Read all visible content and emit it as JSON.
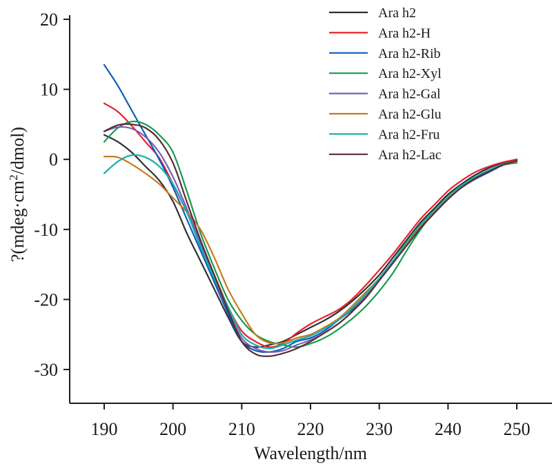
{
  "chart_data": {
    "type": "line",
    "title": "",
    "xlabel": "Wavelength/nm",
    "ylabel": "?(mdeg·cm²/dmol)",
    "ylabel_parts": {
      "main": "?(mdeg·cm",
      "sup": "2",
      "tail": "/dmol)"
    },
    "xlim": [
      185,
      255
    ],
    "ylim": [
      -35,
      20
    ],
    "xticks": [
      190,
      200,
      210,
      220,
      230,
      240,
      250
    ],
    "yticks": [
      20,
      10,
      0,
      -10,
      -20,
      -30
    ],
    "grid": false,
    "legend_position": "top-right",
    "x": [
      190,
      192,
      194,
      196,
      198,
      200,
      202,
      204,
      206,
      208,
      210,
      212,
      214,
      216,
      218,
      220,
      222,
      224,
      226,
      228,
      230,
      232,
      234,
      236,
      238,
      240,
      242,
      244,
      246,
      248,
      250
    ],
    "series": [
      {
        "name": "Ara h2",
        "color": "#2b2f33",
        "values": [
          3.5,
          2.5,
          1.0,
          -1.0,
          -3.0,
          -6.0,
          -10.5,
          -14.5,
          -18.5,
          -22.5,
          -26.0,
          -26.8,
          -26.5,
          -26.0,
          -25.0,
          -24.0,
          -23.0,
          -21.8,
          -20.3,
          -18.5,
          -16.5,
          -14.0,
          -11.5,
          -9.0,
          -7.0,
          -5.0,
          -3.5,
          -2.2,
          -1.2,
          -0.5,
          0.0
        ]
      },
      {
        "name": "Ara h2-H",
        "color": "#e8202c",
        "values": [
          8.0,
          6.8,
          4.8,
          2.5,
          0.2,
          -3.5,
          -7.5,
          -12.0,
          -16.5,
          -21.0,
          -24.5,
          -26.0,
          -26.8,
          -26.3,
          -24.8,
          -23.5,
          -22.5,
          -21.5,
          -20.0,
          -18.0,
          -15.8,
          -13.5,
          -11.0,
          -8.5,
          -6.5,
          -4.5,
          -3.0,
          -1.8,
          -1.0,
          -0.4,
          0.0
        ]
      },
      {
        "name": "Ara h2-Rib",
        "color": "#0a5fb4",
        "values": [
          13.5,
          10.5,
          7.0,
          3.5,
          0.0,
          -4.0,
          -8.5,
          -13.0,
          -17.5,
          -22.0,
          -26.0,
          -27.3,
          -27.5,
          -27.0,
          -26.0,
          -25.5,
          -24.5,
          -23.0,
          -21.5,
          -19.5,
          -17.0,
          -14.5,
          -12.0,
          -9.5,
          -7.5,
          -5.5,
          -4.0,
          -2.8,
          -1.8,
          -0.8,
          -0.2
        ]
      },
      {
        "name": "Ara h2-Xyl",
        "color": "#129c4c",
        "values": [
          2.5,
          4.5,
          5.4,
          5.0,
          3.5,
          1.0,
          -4.5,
          -10.5,
          -15.5,
          -20.0,
          -23.0,
          -25.0,
          -26.0,
          -26.5,
          -26.8,
          -26.3,
          -25.5,
          -24.3,
          -22.8,
          -21.0,
          -18.8,
          -16.2,
          -13.0,
          -10.0,
          -7.5,
          -5.5,
          -3.8,
          -2.5,
          -1.5,
          -0.8,
          -0.5
        ]
      },
      {
        "name": "Ara h2-Gal",
        "color": "#7a5cb8",
        "values": [
          4.0,
          4.6,
          4.4,
          3.2,
          1.0,
          -2.5,
          -7.0,
          -12.0,
          -17.0,
          -21.5,
          -25.5,
          -27.0,
          -27.5,
          -27.3,
          -26.5,
          -25.8,
          -24.8,
          -23.5,
          -21.8,
          -19.5,
          -17.0,
          -14.5,
          -12.0,
          -9.5,
          -7.5,
          -5.5,
          -3.8,
          -2.6,
          -1.6,
          -0.8,
          -0.3
        ]
      },
      {
        "name": "Ara h2-Glu",
        "color": "#c8791c",
        "values": [
          0.4,
          0.3,
          -0.7,
          -2.0,
          -3.5,
          -5.5,
          -7.5,
          -10.0,
          -14.0,
          -18.5,
          -22.0,
          -25.0,
          -26.2,
          -26.2,
          -25.5,
          -25.0,
          -24.0,
          -22.8,
          -21.0,
          -19.0,
          -17.0,
          -14.5,
          -12.0,
          -9.5,
          -7.5,
          -5.5,
          -4.0,
          -2.7,
          -1.6,
          -0.8,
          -0.3
        ]
      },
      {
        "name": "Ara h2-Fru",
        "color": "#17b0b0",
        "values": [
          -2.0,
          -0.3,
          0.6,
          0.3,
          -1.0,
          -3.5,
          -7.5,
          -12.5,
          -17.0,
          -21.0,
          -25.0,
          -26.5,
          -27.0,
          -26.5,
          -25.8,
          -25.2,
          -24.2,
          -23.0,
          -21.3,
          -19.3,
          -17.0,
          -14.5,
          -11.8,
          -9.3,
          -7.3,
          -5.3,
          -3.7,
          -2.5,
          -1.5,
          -0.7,
          -0.2
        ]
      },
      {
        "name": "Ara h2-Lac",
        "color": "#5a2a36",
        "values": [
          4.0,
          4.9,
          5.0,
          4.5,
          2.8,
          -0.5,
          -6.0,
          -11.5,
          -16.5,
          -21.5,
          -26.0,
          -27.8,
          -28.1,
          -27.7,
          -27.0,
          -26.0,
          -24.8,
          -23.5,
          -21.8,
          -19.8,
          -17.3,
          -14.8,
          -12.3,
          -9.8,
          -7.7,
          -5.7,
          -4.0,
          -2.7,
          -1.7,
          -0.8,
          -0.2
        ]
      }
    ]
  }
}
